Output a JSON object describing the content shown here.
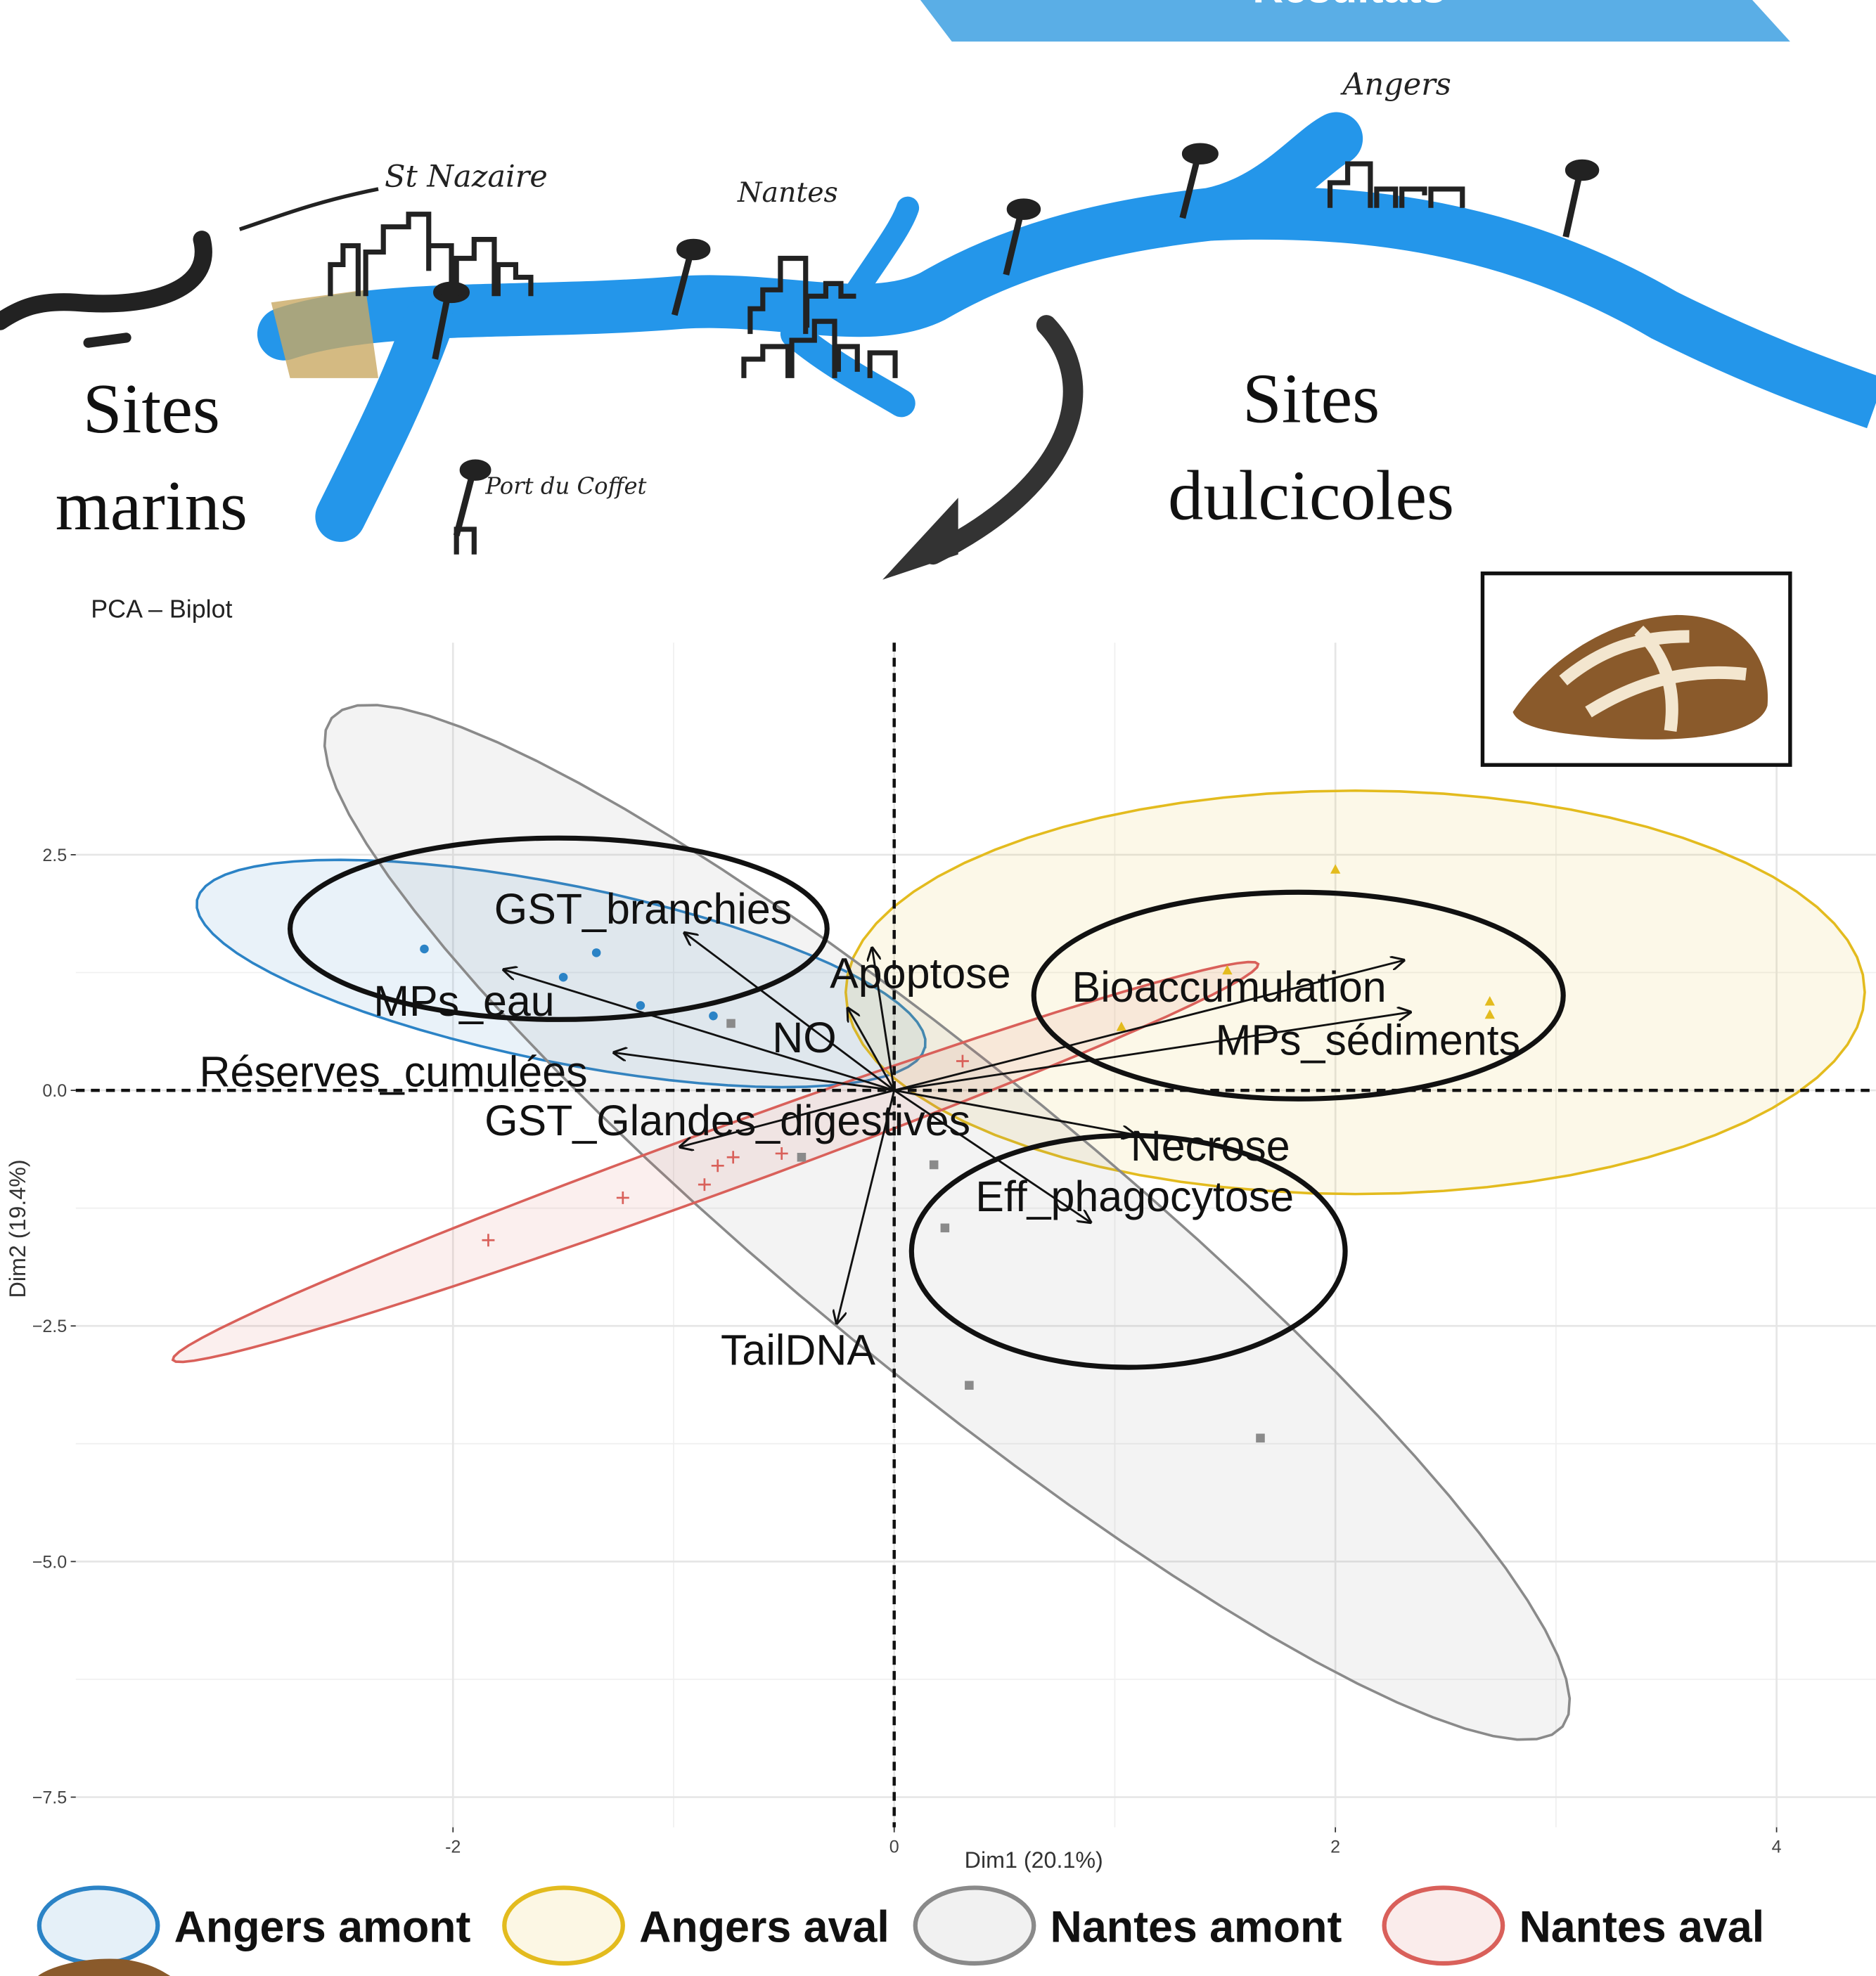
{
  "header": {
    "title": "Résultats"
  },
  "map": {
    "places": [
      "St Nazaire",
      "Nantes",
      "Angers",
      "Port du Coffet"
    ],
    "left_label": [
      "Sites",
      "marins"
    ],
    "right_label": [
      "Sites",
      "dulcicoles"
    ]
  },
  "chart_data": {
    "type": "biplot",
    "title": "PCA – Biplot",
    "x_label": "Dim1 (20.1%)",
    "y_label": "Dim2 (19.4%)",
    "xlim": [
      -3.71,
      4.45
    ],
    "ylim": [
      -7.82,
      4.75
    ],
    "xticks": [
      -2,
      0,
      2,
      4
    ],
    "yticks": [
      2.5,
      {
        "value": 0,
        "label": "0.0"
      },
      {
        "value": -2.5,
        "label": "−2.5"
      },
      {
        "value": -5,
        "label": "−5.0"
      },
      {
        "value": -7.5,
        "label": "−7.5"
      }
    ],
    "grid": true,
    "series": [
      {
        "name": "Angers amont",
        "color": "#2b83c6",
        "marker": "circle",
        "x": [
          -2.13,
          -1.5,
          -1.35,
          -1.15,
          -0.82
        ],
        "y": [
          1.5,
          1.2,
          1.46,
          0.9,
          0.79
        ],
        "ellipse": {
          "center": [
            -1.51,
            1.24
          ],
          "axis1": [
            1.65,
            -0.78
          ],
          "axis2": [
            -0.08,
            -0.92
          ]
        }
      },
      {
        "name": "Angers aval",
        "color": "#e3bb1e",
        "marker": "triangle",
        "x": [
          2.0,
          2.7,
          2.7,
          1.51,
          1.03
        ],
        "y": [
          2.34,
          0.94,
          0.8,
          1.27,
          0.67
        ],
        "ellipse": {
          "center": [
            2.09,
            1.04
          ],
          "axis1": [
            2.31,
            0
          ],
          "axis2": [
            0,
            -2.14
          ]
        }
      },
      {
        "name": "Nantes amont",
        "color": "#8a8a8a",
        "marker": "square",
        "x": [
          -0.74,
          -0.42,
          0.18,
          0.23,
          0.34,
          1.66
        ],
        "y": [
          0.71,
          -0.71,
          -0.79,
          -1.46,
          -3.13,
          -3.69
        ],
        "ellipse": {
          "center": [
            0.24,
            -1.4
          ],
          "axis1": [
            2.79,
            -5.35
          ],
          "axis2": [
            0.43,
            1.24
          ]
        }
      },
      {
        "name": "Nantes aval",
        "color": "#d9605a",
        "marker": "plus",
        "x": [
          -1.84,
          -1.23,
          -0.86,
          -0.8,
          -0.73,
          -0.51,
          0.31
        ],
        "y": [
          -1.59,
          -1.14,
          -1.0,
          -0.8,
          -0.71,
          -0.67,
          0.31
        ],
        "ellipse": {
          "center": [
            -0.81,
            -0.76
          ],
          "axis1": [
            2.46,
            2.1
          ],
          "axis2": [
            0.05,
            -0.31
          ]
        }
      }
    ],
    "loadings": [
      {
        "name": "GST_branchies",
        "x": -0.95,
        "y": 1.67
      },
      {
        "name": "MPs_eau",
        "x": -1.77,
        "y": 1.28
      },
      {
        "name": "Réserves_cumulées",
        "x": -1.27,
        "y": 0.4
      },
      {
        "name": "GST_Glandes_digestives",
        "x": -0.97,
        "y": -0.6
      },
      {
        "name": "Apoptose",
        "x": -0.1,
        "y": 1.51
      },
      {
        "name": "NO",
        "x": -0.21,
        "y": 0.87
      },
      {
        "name": "Bioaccumulation",
        "x": 2.31,
        "y": 1.38
      },
      {
        "name": "MPs_sédiments",
        "x": 2.34,
        "y": 0.83
      },
      {
        "name": "Necrose",
        "x": 1.09,
        "y": -0.47
      },
      {
        "name": "Eff_phagocytose",
        "x": 0.89,
        "y": -1.4
      },
      {
        "name": "TailDNA",
        "x": -0.26,
        "y": -2.47
      }
    ]
  }
}
